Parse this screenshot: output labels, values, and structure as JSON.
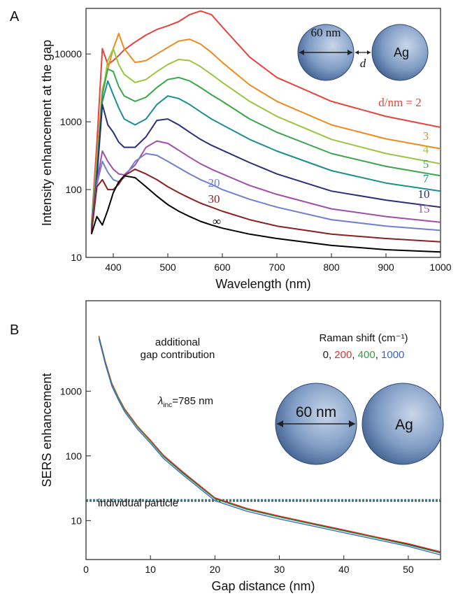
{
  "chart_data": [
    {
      "type": "line",
      "panel_label": "A",
      "log_y": true,
      "xlabel": "Wavelength (nm)",
      "ylabel": "Intensity enhancement at the gap",
      "xlim": [
        350,
        1000
      ],
      "ylim": [
        10,
        47000
      ],
      "xticks": [
        400,
        500,
        600,
        700,
        800,
        900,
        1000
      ],
      "yticks": [
        10,
        100,
        1000,
        10000
      ],
      "x": [
        360,
        370,
        380,
        390,
        400,
        410,
        420,
        440,
        460,
        480,
        500,
        520,
        540,
        560,
        580,
        600,
        650,
        700,
        800,
        900,
        1000
      ],
      "series": [
        {
          "name": "d/nm = 2",
          "color": "#e8433a",
          "values": [
            30,
            500,
            12000,
            7000,
            8000,
            9500,
            11500,
            15000,
            19000,
            23000,
            26000,
            30000,
            38000,
            43000,
            38000,
            25000,
            9000,
            4500,
            2000,
            1200,
            830
          ]
        },
        {
          "name": "3",
          "color": "#f08a1d",
          "values": [
            30,
            300,
            3000,
            6000,
            12000,
            20000,
            12000,
            7500,
            8000,
            10000,
            12500,
            15500,
            16500,
            14000,
            10500,
            7500,
            3500,
            2000,
            900,
            560,
            400
          ]
        },
        {
          "name": "4",
          "color": "#9bc53d",
          "values": [
            30,
            250,
            2500,
            8000,
            12000,
            7000,
            5000,
            3800,
            4200,
            5500,
            7000,
            8300,
            8000,
            6500,
            5000,
            3800,
            2000,
            1200,
            550,
            340,
            240
          ]
        },
        {
          "name": "5",
          "color": "#3aa64a",
          "values": [
            28,
            200,
            2500,
            6000,
            5500,
            3300,
            2400,
            2000,
            2300,
            3200,
            4200,
            4500,
            4000,
            3200,
            2500,
            2000,
            1100,
            700,
            340,
            220,
            160
          ]
        },
        {
          "name": "7",
          "color": "#1a8f8f",
          "values": [
            27,
            180,
            2000,
            4000,
            2500,
            1600,
            1100,
            900,
            1100,
            1800,
            2400,
            2200,
            1800,
            1400,
            1100,
            900,
            550,
            370,
            190,
            125,
            95
          ]
        },
        {
          "name": "10",
          "color": "#2a2f7a",
          "values": [
            26,
            150,
            1800,
            900,
            700,
            500,
            420,
            420,
            600,
            1050,
            1100,
            900,
            700,
            550,
            450,
            380,
            250,
            170,
            95,
            70,
            55
          ]
        },
        {
          "name": "15",
          "color": "#a04fa8",
          "values": [
            25,
            130,
            370,
            260,
            200,
            170,
            165,
            230,
            420,
            520,
            480,
            380,
            300,
            240,
            200,
            170,
            115,
            85,
            52,
            40,
            33
          ]
        },
        {
          "name": "20",
          "color": "#6f7fcf",
          "values": [
            24,
            120,
            260,
            180,
            140,
            130,
            150,
            260,
            340,
            320,
            260,
            210,
            170,
            140,
            120,
            100,
            72,
            55,
            36,
            29,
            25
          ]
        },
        {
          "name": "30",
          "color": "#8b2020",
          "values": [
            23,
            110,
            140,
            100,
            100,
            120,
            160,
            200,
            170,
            140,
            110,
            90,
            75,
            63,
            55,
            48,
            36,
            29,
            22,
            19,
            17
          ]
        },
        {
          "name": "∞",
          "color": "#000000",
          "values": [
            22,
            40,
            30,
            50,
            90,
            130,
            160,
            150,
            110,
            80,
            60,
            48,
            40,
            34,
            30,
            27,
            22,
            19,
            15,
            13,
            12
          ]
        }
      ],
      "annotations": {
        "diameter": "60 nm",
        "gap": "d",
        "material": "Ag"
      }
    },
    {
      "type": "line",
      "panel_label": "B",
      "log_y": true,
      "xlabel": "Gap distance (nm)",
      "ylabel": "SERS enhancement",
      "xlim": [
        0,
        55
      ],
      "ylim": [
        2.5,
        25000
      ],
      "xticks": [
        0,
        10,
        20,
        30,
        40,
        50
      ],
      "yticks": [
        10,
        100,
        1000
      ],
      "x": [
        2,
        3,
        4,
        5,
        6,
        8,
        10,
        12,
        15,
        20,
        25,
        30,
        35,
        40,
        45,
        50,
        55
      ],
      "legend_title": "Raman shift (cm⁻¹)",
      "legend_separator": ",",
      "series": [
        {
          "name": "0",
          "color": "#222222",
          "values": [
            7000,
            2800,
            1300,
            800,
            520,
            280,
            170,
            100,
            55,
            22,
            15,
            11.5,
            9,
            7,
            5.5,
            4.3,
            3.2
          ]
        },
        {
          "name": "200",
          "color": "#e0302a",
          "values": [
            7200,
            2880,
            1340,
            820,
            535,
            288,
            175,
            103,
            57,
            22.6,
            15.4,
            11.8,
            9.2,
            7.2,
            5.6,
            4.4,
            3.3
          ]
        },
        {
          "name": "400",
          "color": "#2ea043",
          "values": [
            6900,
            2760,
            1280,
            790,
            512,
            276,
            167,
            98,
            54,
            21.6,
            14.8,
            11.3,
            8.8,
            6.9,
            5.4,
            4.2,
            3.15
          ]
        },
        {
          "name": "1000",
          "color": "#3a5fcd",
          "values": [
            6500,
            2600,
            1200,
            740,
            480,
            258,
            157,
            92,
            51,
            20.3,
            13.9,
            10.6,
            8.3,
            6.5,
            5.1,
            4,
            2.95
          ]
        }
      ],
      "hlines": [
        {
          "value": 21,
          "color": "#1a6f6f"
        },
        {
          "value": 20,
          "color": "#333333"
        }
      ],
      "annotations": {
        "gap_line1": "additional",
        "gap_line2": "gap contribution",
        "lambda": {
          "symbol": "λ",
          "subscript": "inc",
          "text": "=785 nm"
        },
        "baseline": "individual particle",
        "diameter": "60 nm",
        "material": "Ag"
      }
    }
  ]
}
